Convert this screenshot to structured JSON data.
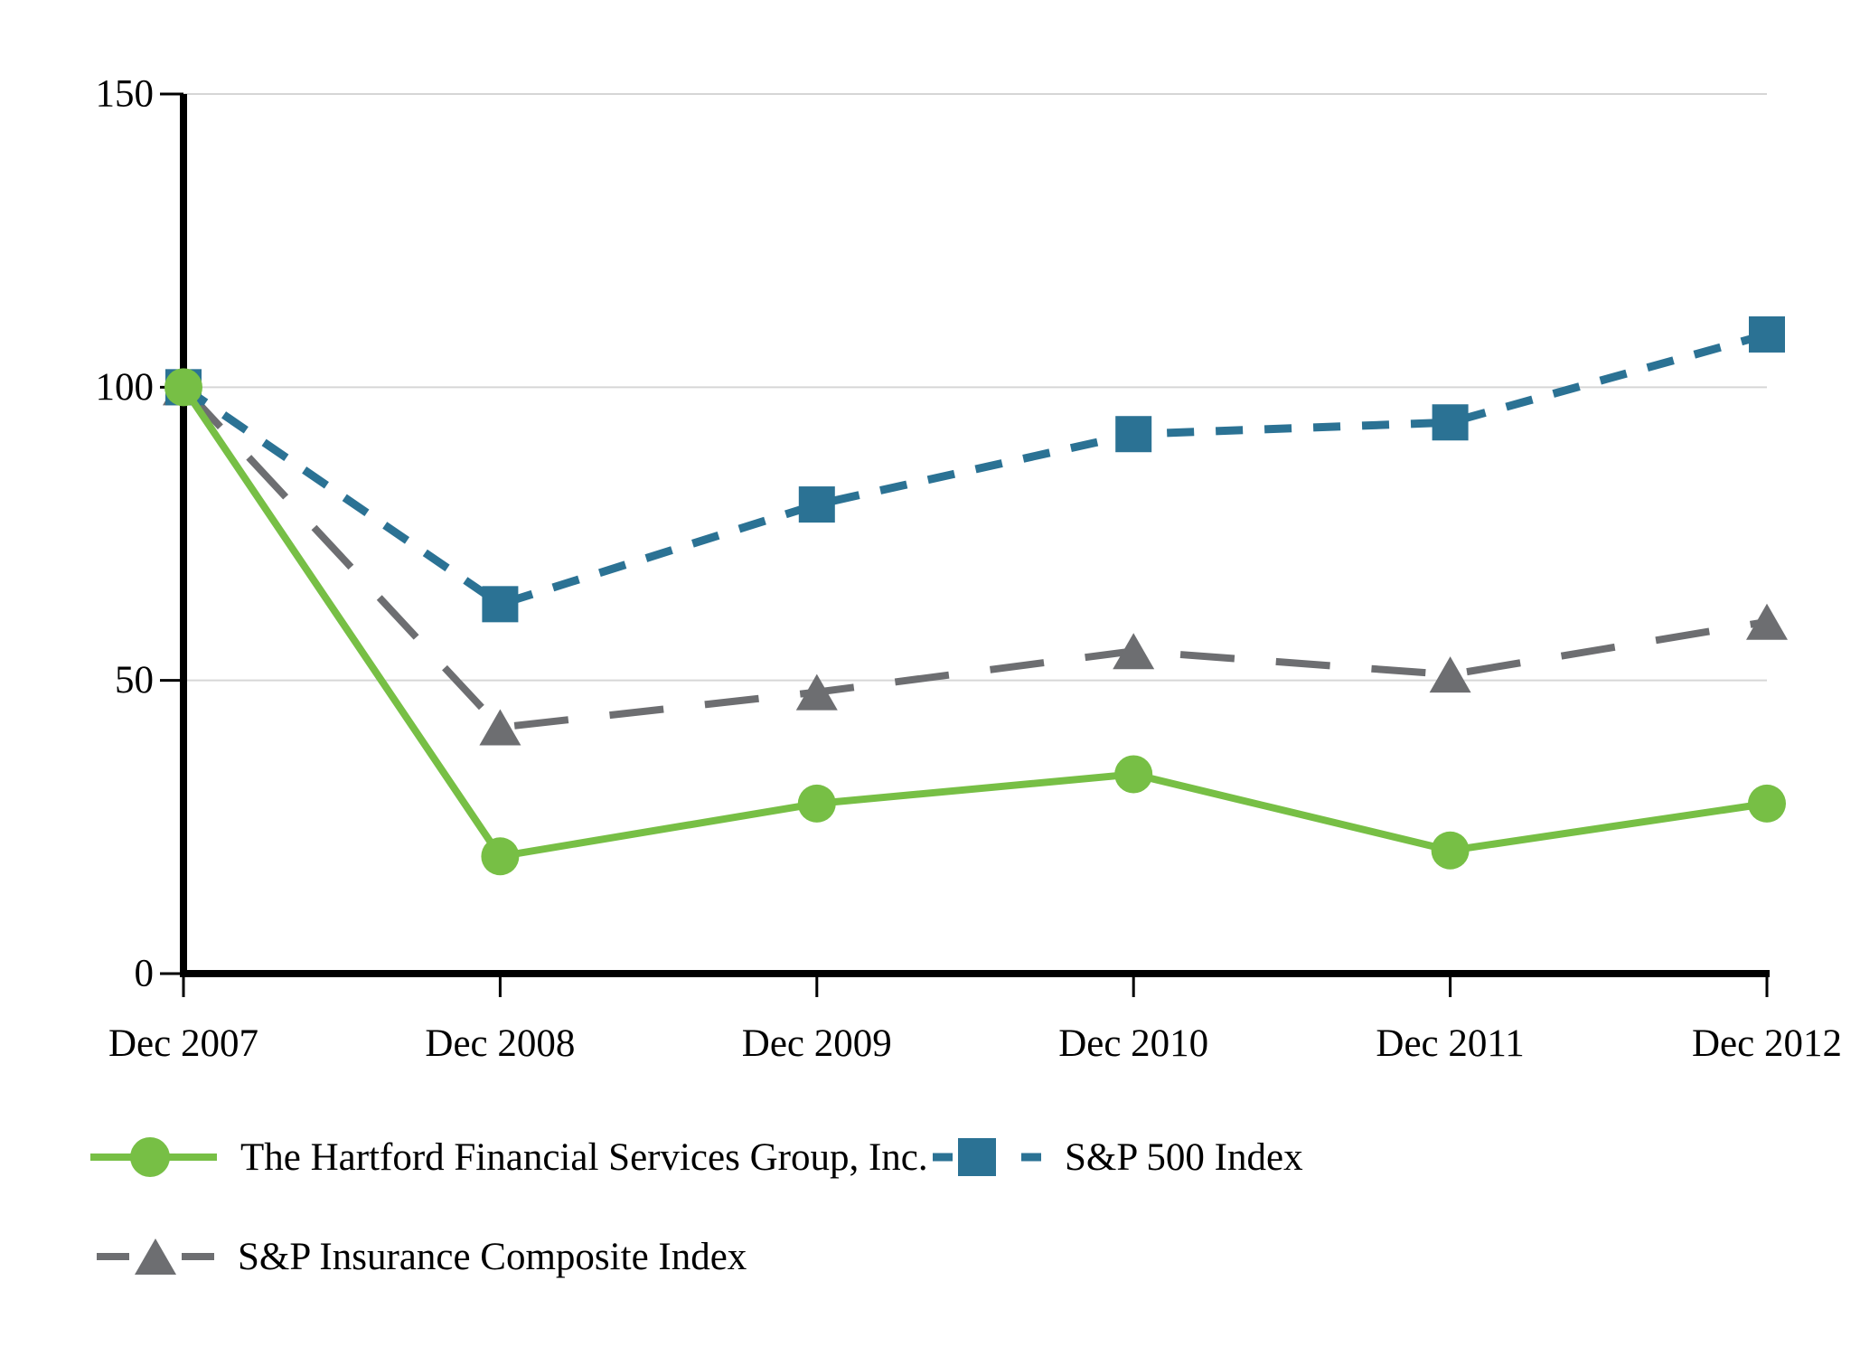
{
  "chart_data": {
    "type": "line",
    "title": "",
    "xlabel": "",
    "ylabel": "",
    "categories": [
      "Dec 2007",
      "Dec 2008",
      "Dec 2009",
      "Dec 2010",
      "Dec 2011",
      "Dec 2012"
    ],
    "series": [
      {
        "name": "The Hartford Financial Services Group, Inc.",
        "marker": "circle",
        "line_style": "solid",
        "color": "#77bf45",
        "values": [
          100,
          20,
          29,
          34,
          21,
          29
        ]
      },
      {
        "name": "S&P 500 Index",
        "marker": "square",
        "line_style": "dashed",
        "color": "#2b7294",
        "values": [
          100,
          63,
          80,
          92,
          94,
          109
        ]
      },
      {
        "name": "S&P Insurance Composite Index",
        "marker": "triangle",
        "line_style": "long-dash",
        "color": "#6d6e71",
        "values": [
          100,
          42,
          48,
          55,
          51,
          60
        ]
      }
    ],
    "ylim": [
      0,
      150
    ],
    "yticks": [
      0,
      50,
      100,
      150
    ],
    "grid": "horizontal",
    "gridline_color": "#d6d6d6",
    "axis_color": "#000000",
    "legend_position": "bottom-left"
  }
}
